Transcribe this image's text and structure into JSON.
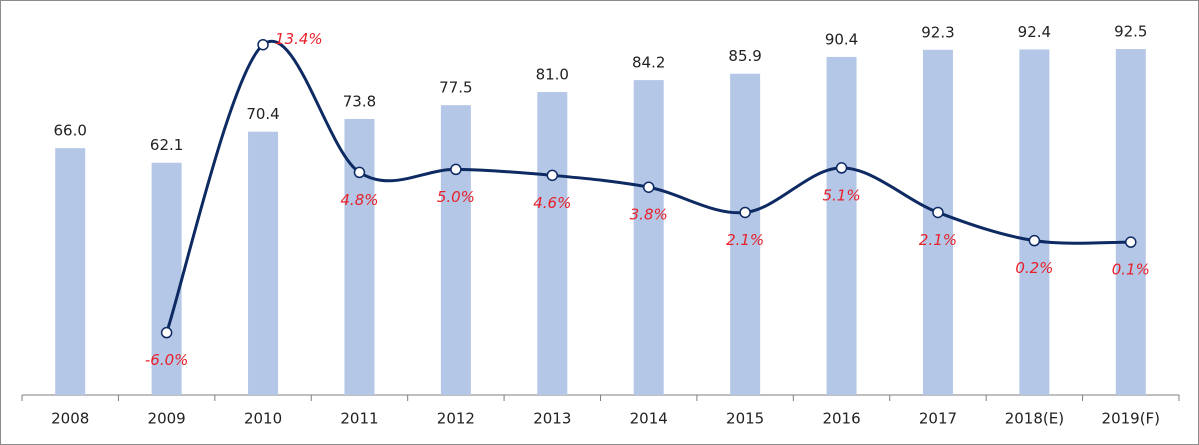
{
  "chart_data": {
    "type": "bar",
    "categories": [
      "2008",
      "2009",
      "2010",
      "2011",
      "2012",
      "2013",
      "2014",
      "2015",
      "2016",
      "2017",
      "2018(E)",
      "2019(F)"
    ],
    "ylim": [
      0,
      100
    ],
    "y2lim": [
      -10.2,
      15
    ],
    "series": [
      {
        "color": "#b4c7e7",
        "values": [
          66.0,
          62.1,
          70.4,
          73.8,
          77.5,
          81.0,
          84.2,
          85.9,
          90.4,
          92.3,
          92.4,
          92.5
        ],
        "value_labels": [
          "66.0",
          "62.1",
          "70.4",
          "73.8",
          "77.5",
          "81.0",
          "84.2",
          "85.9",
          "90.4",
          "92.3",
          "92.4",
          "92.5"
        ]
      },
      {
        "type": "line",
        "axis": "y2",
        "color": "#0e2a63",
        "values": [
          null,
          -6.0,
          13.4,
          4.8,
          5.0,
          4.6,
          3.8,
          2.1,
          5.1,
          2.1,
          0.2,
          0.1
        ],
        "value_labels": [
          null,
          "-6.0%",
          "13.4%",
          "4.8%",
          "5.0%",
          "4.6%",
          "3.8%",
          "2.1%",
          "5.1%",
          "2.1%",
          "0.2%",
          "0.1%"
        ]
      }
    ]
  }
}
